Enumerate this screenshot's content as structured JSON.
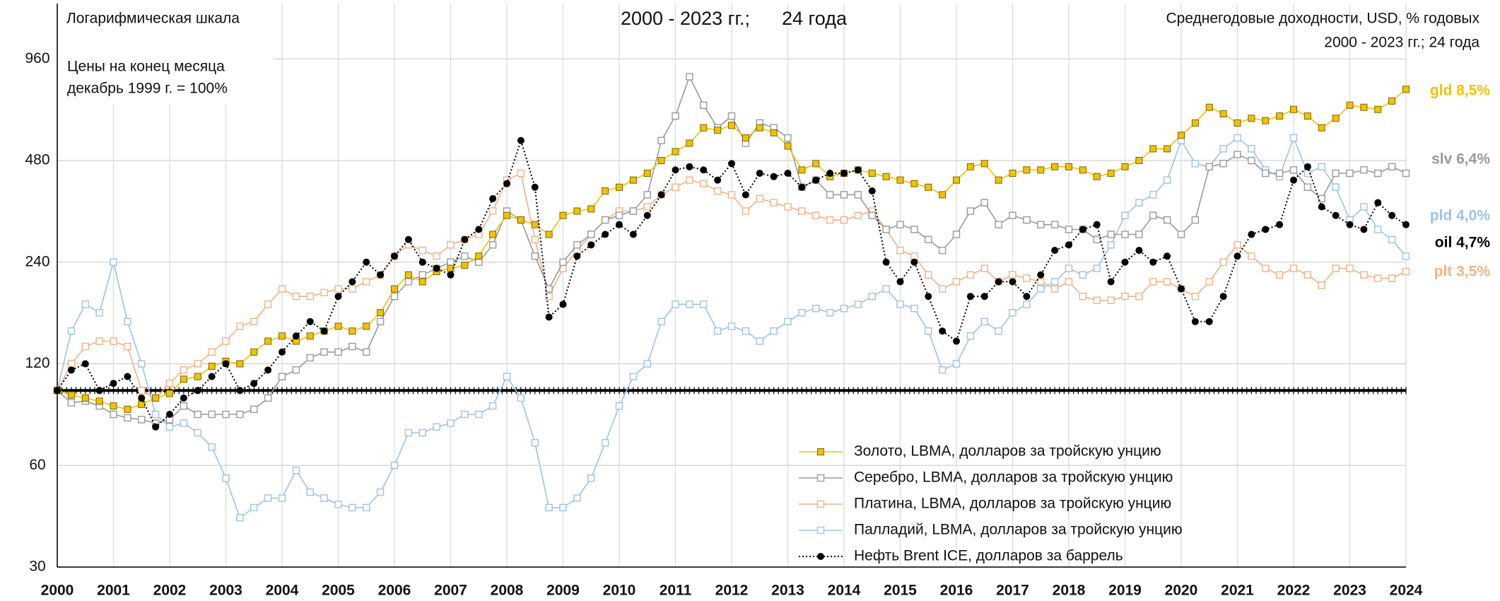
{
  "chart_data": {
    "type": "line",
    "log_scale": true,
    "grid": true,
    "legend": "lower right",
    "scale_note": "Логарифмическая шкала",
    "subtitle": "2000 - 2023 гг.;      24 года",
    "right_note": [
      "Среднегодовые доходности, USD, % годовых",
      "2000 - 2023 гг.; 24 года"
    ],
    "price_note": [
      "Цены на конец месяца",
      "декабрь 1999 г. = 100%"
    ],
    "reference_line": 100,
    "xlim": [
      2000,
      2024
    ],
    "xticks": [
      2000,
      2001,
      2002,
      2003,
      2004,
      2005,
      2006,
      2007,
      2008,
      2009,
      2010,
      2011,
      2012,
      2013,
      2014,
      2015,
      2016,
      2017,
      2018,
      2019,
      2020,
      2021,
      2022,
      2023,
      2024
    ],
    "ylim": [
      30,
      1400
    ],
    "yticks": [
      30,
      60,
      120,
      240,
      480,
      960
    ],
    "x": [
      2000,
      2000.25,
      2000.5,
      2000.75,
      2001,
      2001.25,
      2001.5,
      2001.75,
      2002,
      2002.25,
      2002.5,
      2002.75,
      2003,
      2003.25,
      2003.5,
      2003.75,
      2004,
      2004.25,
      2004.5,
      2004.75,
      2005,
      2005.25,
      2005.5,
      2005.75,
      2006,
      2006.25,
      2006.5,
      2006.75,
      2007,
      2007.25,
      2007.5,
      2007.75,
      2008,
      2008.25,
      2008.5,
      2008.75,
      2009,
      2009.25,
      2009.5,
      2009.75,
      2010,
      2010.25,
      2010.5,
      2010.75,
      2011,
      2011.25,
      2011.5,
      2011.75,
      2012,
      2012.25,
      2012.5,
      2012.75,
      2013,
      2013.25,
      2013.5,
      2013.75,
      2014,
      2014.25,
      2014.5,
      2014.75,
      2015,
      2015.25,
      2015.5,
      2015.75,
      2016,
      2016.25,
      2016.5,
      2016.75,
      2017,
      2017.25,
      2017.5,
      2017.75,
      2018,
      2018.25,
      2018.5,
      2018.75,
      2019,
      2019.25,
      2019.5,
      2019.75,
      2020,
      2020.25,
      2020.5,
      2020.75,
      2021,
      2021.25,
      2021.5,
      2021.75,
      2022,
      2022.25,
      2022.5,
      2022.75,
      2023,
      2023.25,
      2023.5,
      2023.75,
      2024
    ],
    "series": [
      {
        "name": "Золото, LBMA, долларов за тройскую унцию",
        "end_label": "gld 8,5%",
        "color": "#f2c200",
        "marker": "square-filled",
        "values": [
          100,
          97,
          95,
          93,
          90,
          88,
          91,
          95,
          98,
          108,
          110,
          118,
          122,
          120,
          130,
          140,
          145,
          140,
          145,
          150,
          155,
          150,
          155,
          170,
          200,
          220,
          210,
          225,
          230,
          235,
          250,
          290,
          330,
          320,
          310,
          290,
          330,
          340,
          345,
          390,
          400,
          420,
          440,
          480,
          510,
          540,
          600,
          590,
          610,
          560,
          600,
          580,
          530,
          450,
          470,
          430,
          440,
          450,
          440,
          430,
          420,
          410,
          400,
          380,
          420,
          460,
          470,
          420,
          440,
          450,
          450,
          460,
          460,
          450,
          430,
          440,
          460,
          480,
          520,
          520,
          570,
          620,
          690,
          660,
          620,
          640,
          630,
          650,
          680,
          650,
          600,
          640,
          700,
          690,
          680,
          720,
          780
        ]
      },
      {
        "name": "Серебро, LBMA, долларов за тройскую унцию",
        "end_label": "slv 6,4%",
        "color": "#9a9a9a",
        "marker": "square-open",
        "values": [
          100,
          92,
          93,
          90,
          85,
          83,
          82,
          80,
          82,
          90,
          85,
          85,
          85,
          85,
          88,
          95,
          110,
          115,
          125,
          130,
          130,
          135,
          130,
          160,
          190,
          210,
          220,
          230,
          240,
          250,
          240,
          270,
          340,
          320,
          250,
          200,
          240,
          270,
          290,
          320,
          330,
          340,
          380,
          550,
          650,
          850,
          700,
          600,
          650,
          540,
          620,
          600,
          560,
          400,
          420,
          380,
          380,
          380,
          330,
          300,
          310,
          300,
          280,
          260,
          290,
          340,
          360,
          310,
          330,
          320,
          310,
          310,
          300,
          300,
          280,
          290,
          290,
          290,
          330,
          320,
          290,
          320,
          460,
          470,
          500,
          480,
          440,
          440,
          450,
          400,
          370,
          440,
          440,
          450,
          440,
          460,
          440
        ]
      },
      {
        "name": "Платина, LBMA, долларов за тройскую унцию",
        "end_label": "plt 3,5%",
        "color": "#f4b183",
        "marker": "square-open",
        "values": [
          100,
          120,
          135,
          140,
          140,
          135,
          100,
          95,
          105,
          115,
          120,
          130,
          140,
          155,
          160,
          180,
          200,
          190,
          190,
          195,
          200,
          200,
          210,
          220,
          250,
          270,
          260,
          250,
          270,
          280,
          290,
          340,
          420,
          440,
          280,
          190,
          230,
          260,
          290,
          320,
          340,
          340,
          350,
          380,
          400,
          420,
          410,
          390,
          380,
          340,
          370,
          360,
          350,
          340,
          330,
          320,
          320,
          330,
          340,
          300,
          260,
          250,
          220,
          200,
          210,
          220,
          230,
          210,
          220,
          215,
          210,
          200,
          210,
          190,
          185,
          185,
          190,
          190,
          210,
          210,
          200,
          190,
          210,
          240,
          270,
          250,
          230,
          220,
          230,
          220,
          205,
          230,
          230,
          220,
          215,
          215,
          225
        ]
      },
      {
        "name": "Палладий, LBMA, долларов за тройскую унцию",
        "end_label": "pld 4,0%",
        "color": "#9dc3e6",
        "marker": "square-open",
        "values": [
          100,
          150,
          180,
          170,
          240,
          160,
          120,
          85,
          78,
          80,
          75,
          68,
          55,
          42,
          45,
          48,
          48,
          58,
          50,
          48,
          46,
          45,
          45,
          50,
          60,
          75,
          75,
          78,
          80,
          85,
          85,
          90,
          110,
          95,
          70,
          45,
          45,
          48,
          55,
          70,
          90,
          110,
          120,
          160,
          180,
          180,
          180,
          150,
          155,
          150,
          140,
          150,
          160,
          170,
          175,
          170,
          175,
          180,
          190,
          200,
          180,
          175,
          150,
          115,
          120,
          145,
          160,
          150,
          170,
          180,
          200,
          210,
          230,
          220,
          230,
          270,
          330,
          360,
          380,
          420,
          550,
          470,
          460,
          520,
          560,
          520,
          450,
          430,
          560,
          440,
          460,
          400,
          320,
          350,
          300,
          280,
          250
        ]
      },
      {
        "name": "Нефть Brent ICE, долларов за баррель",
        "end_label": "oil 4,7%",
        "color": "#000000",
        "marker": "circle",
        "values": [
          100,
          115,
          120,
          100,
          105,
          110,
          95,
          78,
          85,
          95,
          100,
          110,
          120,
          100,
          105,
          115,
          130,
          145,
          160,
          150,
          190,
          210,
          240,
          220,
          250,
          280,
          240,
          230,
          220,
          280,
          300,
          370,
          410,
          550,
          400,
          165,
          180,
          250,
          270,
          290,
          310,
          290,
          330,
          380,
          450,
          460,
          450,
          420,
          470,
          380,
          440,
          430,
          440,
          400,
          420,
          440,
          440,
          450,
          390,
          240,
          210,
          240,
          190,
          150,
          140,
          190,
          190,
          210,
          210,
          190,
          220,
          260,
          270,
          300,
          310,
          210,
          240,
          260,
          240,
          250,
          200,
          160,
          160,
          190,
          250,
          290,
          300,
          310,
          420,
          460,
          350,
          330,
          310,
          300,
          360,
          330,
          310
        ]
      }
    ]
  }
}
